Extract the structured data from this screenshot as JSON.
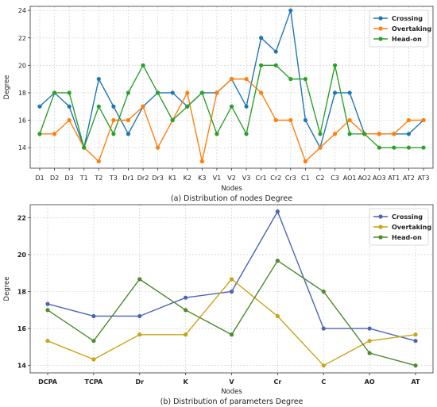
{
  "chart_data": [
    {
      "type": "line",
      "caption": "(a) Distribution of nodes Degree",
      "xlabel": "Nodes",
      "ylabel": "Degree",
      "categories": [
        "D1",
        "D2",
        "D3",
        "T1",
        "T2",
        "T3",
        "Dr1",
        "Dr2",
        "Dr3",
        "K1",
        "K2",
        "K3",
        "V1",
        "V2",
        "V3",
        "Cr1",
        "Cr2",
        "Cr3",
        "C1",
        "C2",
        "C3",
        "AO1",
        "AO2",
        "AO3",
        "AT1",
        "AT2",
        "AT3"
      ],
      "ylim": [
        12.5,
        24.3
      ],
      "yticks": [
        14,
        16,
        18,
        20,
        22,
        24
      ],
      "grid": true,
      "legend_position": "top-right",
      "series": [
        {
          "name": "Crossing",
          "color": "#1f77b4",
          "marker": "circle",
          "values": [
            17,
            18,
            17,
            14,
            19,
            17,
            15,
            17,
            18,
            18,
            17,
            18,
            18,
            19,
            17,
            22,
            21,
            24,
            16,
            14,
            18,
            18,
            15,
            15,
            15,
            15,
            16
          ]
        },
        {
          "name": "Overtaking",
          "color": "#ff7f0e",
          "marker": "circle",
          "values": [
            15,
            15,
            16,
            14,
            13,
            16,
            16,
            17,
            14,
            16,
            18,
            13,
            18,
            19,
            19,
            18,
            16,
            16,
            13,
            14,
            15,
            16,
            15,
            15,
            15,
            16,
            16
          ]
        },
        {
          "name": "Head-on",
          "color": "#2ca02c",
          "marker": "circle",
          "values": [
            15,
            18,
            18,
            14,
            17,
            15,
            18,
            20,
            18,
            16,
            17,
            18,
            15,
            17,
            15,
            20,
            20,
            19,
            19,
            15,
            20,
            15,
            15,
            14,
            14,
            14,
            14
          ]
        }
      ]
    },
    {
      "type": "line",
      "caption": "(b) Distribution of parameters Degree",
      "xlabel": "Nodes",
      "ylabel": "Degree",
      "categories": [
        "DCPA",
        "TCPA",
        "Dr",
        "K",
        "V",
        "Cr",
        "C",
        "AO",
        "AT"
      ],
      "ylim": [
        13.6,
        22.7
      ],
      "yticks": [
        14,
        16,
        18,
        20,
        22
      ],
      "grid": true,
      "legend_position": "top-right",
      "series": [
        {
          "name": "Crossing",
          "color": "#4a64b8",
          "marker": "circle",
          "values": [
            17.33,
            16.67,
            16.67,
            17.67,
            18.0,
            22.33,
            16.0,
            16.0,
            15.33
          ]
        },
        {
          "name": "Overtaking",
          "color": "#c9a414",
          "marker": "circle",
          "values": [
            15.33,
            14.33,
            15.67,
            15.67,
            18.67,
            16.67,
            14.0,
            15.33,
            15.67
          ]
        },
        {
          "name": "Head-on",
          "color": "#4d8a2c",
          "marker": "circle",
          "values": [
            17.0,
            15.33,
            18.67,
            17.0,
            15.67,
            19.67,
            18.0,
            14.67,
            14.0
          ]
        }
      ]
    }
  ]
}
